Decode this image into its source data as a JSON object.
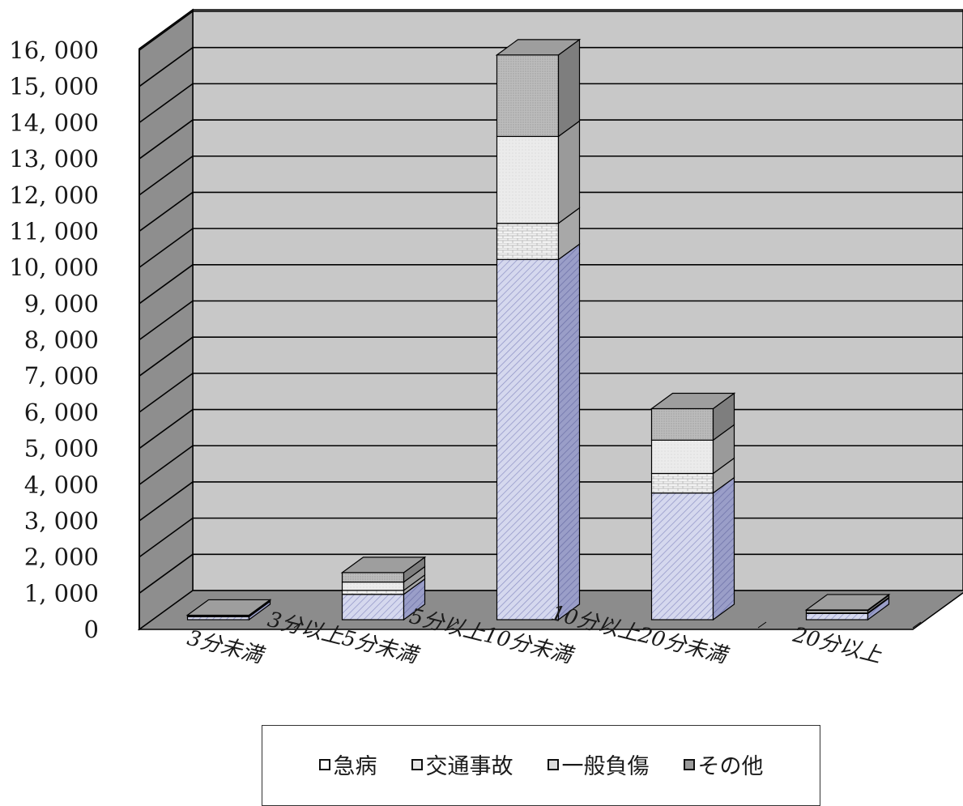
{
  "chart_data": {
    "type": "bar",
    "stacked": true,
    "three_d": true,
    "categories": [
      "3分未満",
      "3分以上5分未満",
      "5分以上10分未満",
      "10分以上20分未満",
      "20分以上"
    ],
    "series": [
      {
        "name": "急病",
        "values": [
          80,
          700,
          9950,
          3500,
          170
        ],
        "color": "#d5d8ee",
        "pattern": "diagonal-hatch"
      },
      {
        "name": "交通事故",
        "values": [
          15,
          110,
          1000,
          540,
          20
        ],
        "color": "#f0f0f0",
        "pattern": "brick"
      },
      {
        "name": "一般負傷",
        "values": [
          20,
          230,
          2400,
          920,
          60
        ],
        "color": "#e6e6e6",
        "pattern": "dots"
      },
      {
        "name": "その他",
        "values": [
          10,
          260,
          2250,
          870,
          20
        ],
        "color": "#bdbdbd",
        "pattern": "dense-dots"
      }
    ],
    "yticks": [
      "0",
      "1, 000",
      "2, 000",
      "3, 000",
      "4, 000",
      "5, 000",
      "6, 000",
      "7, 000",
      "8, 000",
      "9, 000",
      "10, 000",
      "11, 000",
      "12, 000",
      "13, 000",
      "14, 000",
      "15, 000",
      "16, 000"
    ],
    "ylim": [
      0,
      16000
    ],
    "grid": true,
    "legend_position": "bottom",
    "wall_color": "#c8c8c8",
    "floor_color": "#8c8c8c",
    "side_wall_color": "#8e8e8e"
  }
}
